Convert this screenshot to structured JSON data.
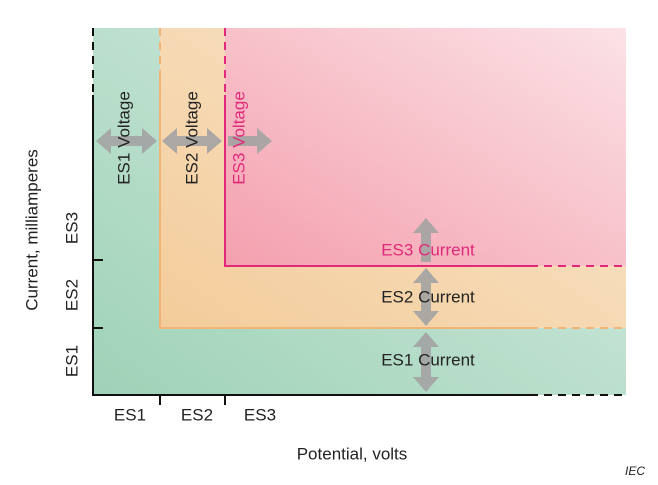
{
  "axes": {
    "y_title": "Current, milliamperes",
    "x_title": "Potential, volts",
    "y_ticks": [
      "ES1",
      "ES2",
      "ES3"
    ],
    "x_ticks": [
      "ES1",
      "ES2",
      "ES3"
    ]
  },
  "regions": [
    {
      "voltage_label": "ES1 Voltage",
      "current_label": "ES1 Current"
    },
    {
      "voltage_label": "ES2 Voltage",
      "current_label": "ES2 Current"
    },
    {
      "voltage_label": "ES3 Voltage",
      "current_label": "ES3 Current"
    }
  ],
  "credit": "IEC"
}
